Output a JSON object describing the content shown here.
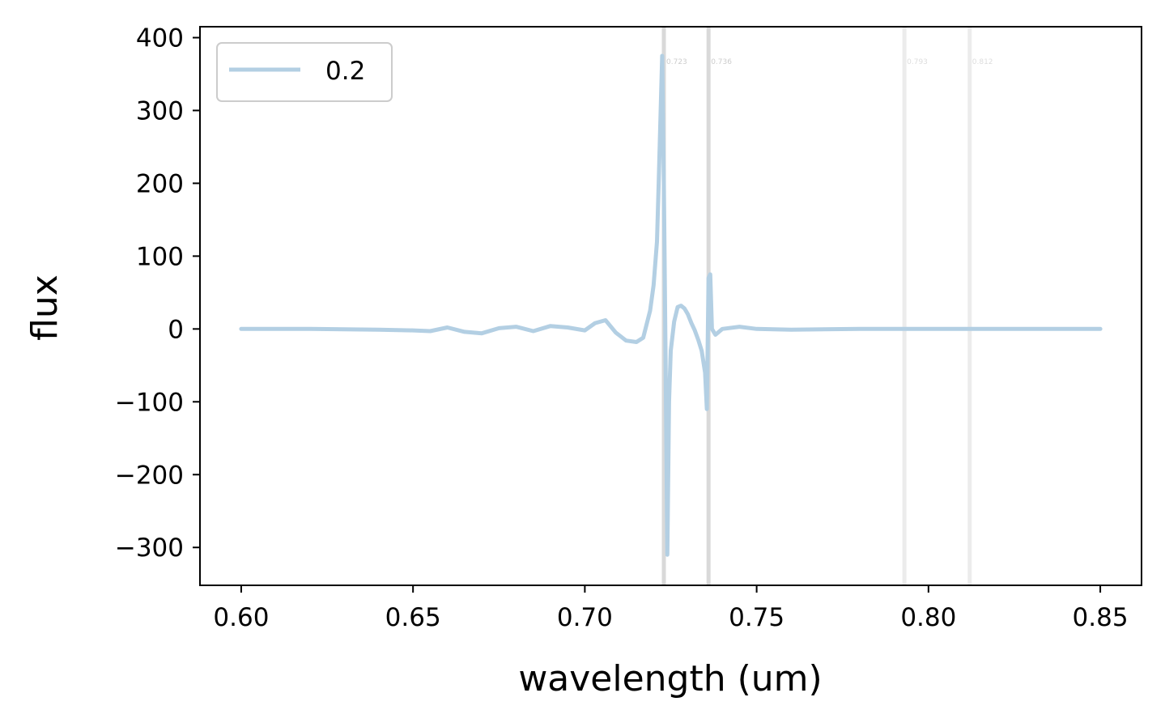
{
  "chart_data": {
    "type": "line",
    "title": "",
    "xlabel": "wavelength (um)",
    "ylabel": "flux",
    "xlim": [
      0.588,
      0.862
    ],
    "ylim": [
      -352,
      415
    ],
    "xticks": [
      0.6,
      0.65,
      0.7,
      0.75,
      0.8,
      0.85
    ],
    "xtick_labels": [
      "0.60",
      "0.65",
      "0.70",
      "0.75",
      "0.80",
      "0.85"
    ],
    "yticks": [
      400,
      300,
      200,
      100,
      0,
      -100,
      -200,
      -300
    ],
    "ytick_labels": [
      "400",
      "300",
      "200",
      "100",
      "0",
      "−100",
      "−200",
      "−300"
    ],
    "grid": false,
    "legend_position": "top-left",
    "series": [
      {
        "name": "0.2",
        "color": "#b3cfe3",
        "x": [
          0.6,
          0.62,
          0.64,
          0.65,
          0.655,
          0.66,
          0.665,
          0.67,
          0.675,
          0.68,
          0.685,
          0.69,
          0.695,
          0.7,
          0.703,
          0.706,
          0.709,
          0.712,
          0.715,
          0.717,
          0.719,
          0.72,
          0.721,
          0.7215,
          0.722,
          0.7225,
          0.723,
          0.7235,
          0.724,
          0.7245,
          0.725,
          0.726,
          0.727,
          0.728,
          0.729,
          0.73,
          0.731,
          0.732,
          0.733,
          0.734,
          0.735,
          0.7355,
          0.736,
          0.7365,
          0.737,
          0.738,
          0.74,
          0.745,
          0.75,
          0.76,
          0.78,
          0.8,
          0.82,
          0.85
        ],
        "y": [
          0,
          0,
          -1,
          -2,
          -3,
          2,
          -4,
          -6,
          1,
          3,
          -3,
          4,
          2,
          -2,
          8,
          12,
          -5,
          -16,
          -18,
          -12,
          25,
          60,
          120,
          200,
          290,
          375,
          200,
          -40,
          -310,
          -100,
          -30,
          10,
          30,
          32,
          28,
          20,
          8,
          -2,
          -15,
          -30,
          -60,
          -110,
          70,
          75,
          0,
          -8,
          0,
          3,
          0,
          -1,
          0,
          0,
          0,
          0
        ]
      }
    ],
    "annotations": [
      {
        "x": 0.723,
        "text": "0.723",
        "color": "#d9d9d9",
        "label_color": "#cccccc"
      },
      {
        "x": 0.736,
        "text": "0.736",
        "color": "#d9d9d9",
        "label_color": "#cccccc"
      },
      {
        "x": 0.793,
        "text": "0.793",
        "color": "#ececec",
        "label_color": "#dddddd"
      },
      {
        "x": 0.812,
        "text": "0.812",
        "color": "#ececec",
        "label_color": "#dddddd"
      }
    ]
  }
}
